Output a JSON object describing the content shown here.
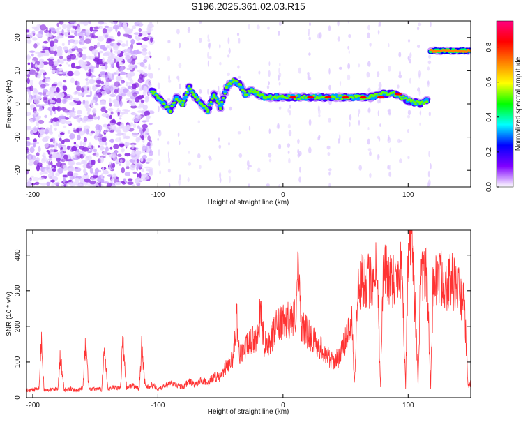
{
  "page_title": "S196.2025.361.02.03.R15",
  "chart_data": [
    {
      "type": "heatmap",
      "title": "S196.2025.361.02.03.R15",
      "xlabel": "Height of straight line (km)",
      "ylabel": "Frequency (Hz)",
      "xlim": [
        -205,
        150
      ],
      "ylim": [
        -25,
        25
      ],
      "xticks": [
        -200,
        -100,
        0,
        100
      ],
      "xtick_labels": [
        "-200",
        "-100",
        "0",
        "100"
      ],
      "yticks": [
        -20,
        -10,
        0,
        10,
        20
      ],
      "ytick_labels": [
        "-20",
        "-10",
        "0",
        "10",
        "20"
      ],
      "colorbar": {
        "label": "Normalized spectral amplitude",
        "range": [
          0.0,
          0.95
        ],
        "ticks": [
          0.0,
          0.2,
          0.4,
          0.6,
          0.8
        ],
        "tick_labels": [
          "0.0",
          "0.2",
          "0.4",
          "0.6",
          "0.8"
        ],
        "colors": [
          "#ffffff",
          "#8000ff",
          "#0000ff",
          "#00ffff",
          "#00ff00",
          "#ffff00",
          "#ff8000",
          "#ff0000",
          "#ff0080"
        ]
      },
      "noise_region_x": [
        -205,
        -105
      ],
      "ridge": {
        "x": [
          -105,
          -100,
          -95,
          -90,
          -85,
          -80,
          -75,
          -70,
          -65,
          -60,
          -55,
          -50,
          -45,
          -40,
          -35,
          -30,
          -25,
          -20,
          -15,
          -10,
          0,
          10,
          20,
          30,
          40,
          50,
          60,
          70,
          80,
          90,
          100,
          110,
          115
        ],
        "freq": [
          4,
          2,
          0,
          -2,
          2,
          0,
          5,
          2,
          0,
          -2,
          3,
          -1,
          5,
          7,
          6,
          3,
          4,
          3,
          2,
          2,
          2,
          2,
          2,
          2,
          2,
          2,
          2,
          2,
          3,
          3,
          1,
          0,
          1
        ]
      },
      "high_ridge": {
        "x": [
          118,
          150
        ],
        "freq": [
          16,
          16
        ]
      }
    },
    {
      "type": "line",
      "title": "",
      "xlabel": "Height of straight line (km)",
      "ylabel": "SNR (10 * v/v)",
      "xlim": [
        -205,
        150
      ],
      "ylim": [
        0,
        470
      ],
      "xticks": [
        -200,
        -100,
        0,
        100
      ],
      "xtick_labels": [
        "-200",
        "-100",
        "0",
        "100"
      ],
      "yticks": [
        0,
        100,
        200,
        300,
        400
      ],
      "ytick_labels": [
        "0",
        "100",
        "200",
        "300",
        "400"
      ],
      "line_color": "#ff3333",
      "series": [
        {
          "name": "SNR",
          "x": [
            -205,
            -200,
            -195,
            -193,
            -191,
            -185,
            -180,
            -178,
            -175,
            -170,
            -165,
            -160,
            -158,
            -155,
            -150,
            -145,
            -143,
            -140,
            -135,
            -130,
            -128,
            -125,
            -120,
            -115,
            -113,
            -110,
            -105,
            -100,
            -95,
            -90,
            -85,
            -80,
            -75,
            -70,
            -65,
            -60,
            -55,
            -50,
            -45,
            -40,
            -37,
            -35,
            -30,
            -25,
            -20,
            -18,
            -15,
            -10,
            -5,
            0,
            5,
            10,
            12,
            15,
            20,
            25,
            30,
            35,
            40,
            45,
            50,
            55,
            57,
            60,
            65,
            70,
            75,
            78,
            80,
            85,
            90,
            95,
            98,
            100,
            103,
            105,
            108,
            110,
            115,
            118,
            120,
            125,
            130,
            135,
            140,
            145,
            148,
            150
          ],
          "y": [
            20,
            22,
            25,
            165,
            20,
            22,
            25,
            120,
            22,
            25,
            20,
            28,
            150,
            22,
            25,
            22,
            135,
            22,
            30,
            25,
            160,
            28,
            35,
            25,
            140,
            30,
            35,
            25,
            30,
            40,
            35,
            30,
            45,
            35,
            50,
            40,
            60,
            55,
            90,
            110,
            230,
            120,
            140,
            160,
            170,
            245,
            150,
            160,
            200,
            210,
            220,
            230,
            345,
            200,
            180,
            160,
            140,
            120,
            100,
            115,
            160,
            230,
            40,
            310,
            340,
            320,
            380,
            30,
            360,
            340,
            330,
            370,
            30,
            400,
            470,
            300,
            30,
            360,
            340,
            30,
            330,
            340,
            320,
            330,
            300,
            250,
            30,
            40
          ]
        }
      ]
    }
  ]
}
